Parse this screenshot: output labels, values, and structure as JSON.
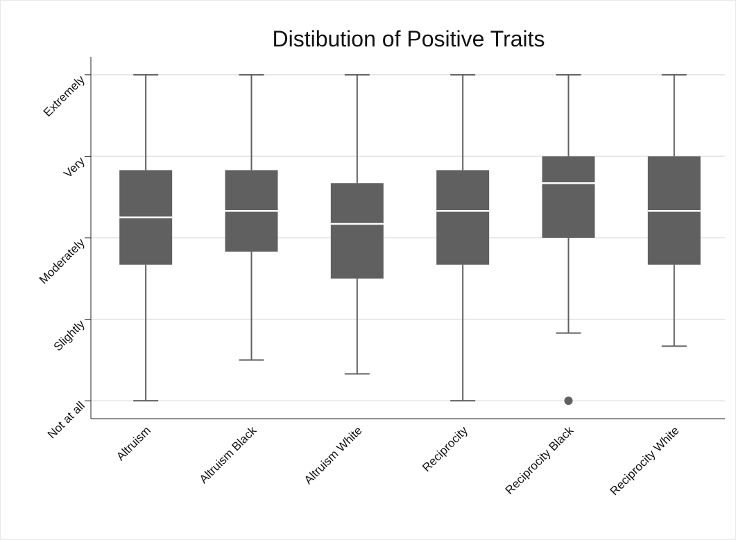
{
  "chart_data": {
    "type": "box",
    "title": "Distibution of Positive Traits",
    "categories": [
      "Altruism",
      "Altruism Black",
      "Altruism White",
      "Reciprocity",
      "Reciprocity Black",
      "Reciprocity White"
    ],
    "boxes": [
      {
        "whislo": 1,
        "q1": 2.67,
        "med": 3.25,
        "q3": 3.83,
        "whishi": 5
      },
      {
        "whislo": 1.5,
        "q1": 2.83,
        "med": 3.33,
        "q3": 3.83,
        "whishi": 5
      },
      {
        "whislo": 1.33,
        "q1": 2.5,
        "med": 3.17,
        "q3": 3.67,
        "whishi": 5
      },
      {
        "whislo": 1,
        "q1": 2.67,
        "med": 3.33,
        "q3": 3.83,
        "whishi": 5
      },
      {
        "whislo": 1.83,
        "q1": 3,
        "med": 3.67,
        "q3": 4,
        "whishi": 5,
        "fliers": [
          1
        ]
      },
      {
        "whislo": 1.67,
        "q1": 2.67,
        "med": 3.33,
        "q3": 4,
        "whishi": 5
      }
    ],
    "color": "#606060",
    "median_color": "#ffffff",
    "ylim": [
      0.78,
      5.22
    ],
    "yticks": [
      {
        "value": 1,
        "label": "Not at all"
      },
      {
        "value": 2,
        "label": "Slightly"
      },
      {
        "value": 3,
        "label": "Moderately"
      },
      {
        "value": 4,
        "label": "Very"
      },
      {
        "value": 5,
        "label": "Extremely"
      }
    ],
    "grid": true
  }
}
